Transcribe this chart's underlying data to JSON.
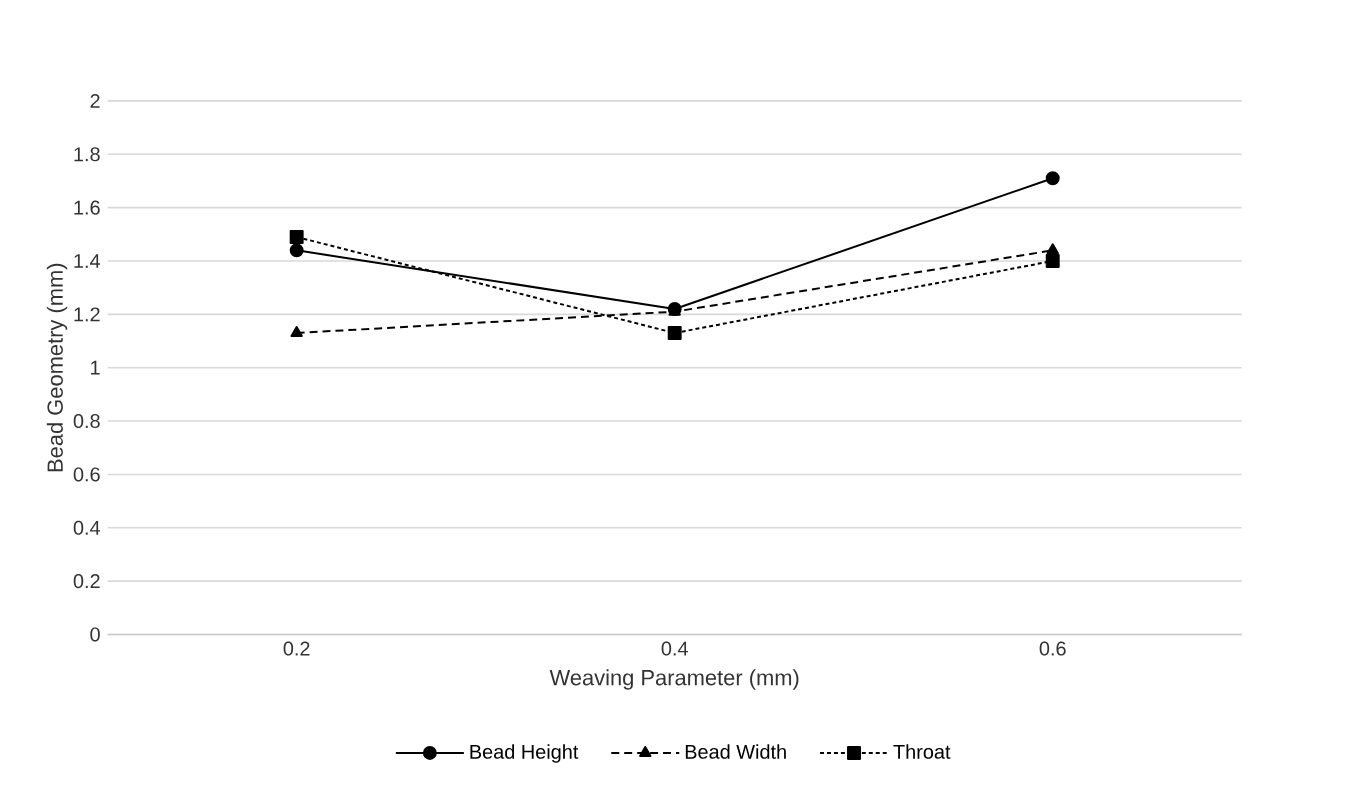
{
  "chart_data": {
    "type": "line",
    "xlabel": "Weaving Parameter (mm)",
    "ylabel": "Bead Geometry (mm)",
    "categories": [
      "0.2",
      "0.4",
      "0.6"
    ],
    "series": [
      {
        "name": "Bead Height",
        "color": "#000000",
        "values": [
          1.44,
          1.22,
          1.71
        ],
        "marker": "circle",
        "line_style": "solid"
      },
      {
        "name": "Bead Width",
        "color": "#000000",
        "values": [
          1.13,
          1.21,
          1.44
        ],
        "marker": "triangle",
        "line_style": "dashed"
      },
      {
        "name": "Throat",
        "color": "#000000",
        "values": [
          1.49,
          1.13,
          1.4
        ],
        "marker": "square",
        "line_style": "dotted"
      }
    ],
    "ylim": [
      0,
      2
    ],
    "yticks": [
      0,
      0.2,
      0.4,
      0.6,
      0.8,
      1,
      1.2,
      1.4,
      1.6,
      1.8,
      2
    ],
    "grid": "y",
    "legend": "bottom"
  }
}
